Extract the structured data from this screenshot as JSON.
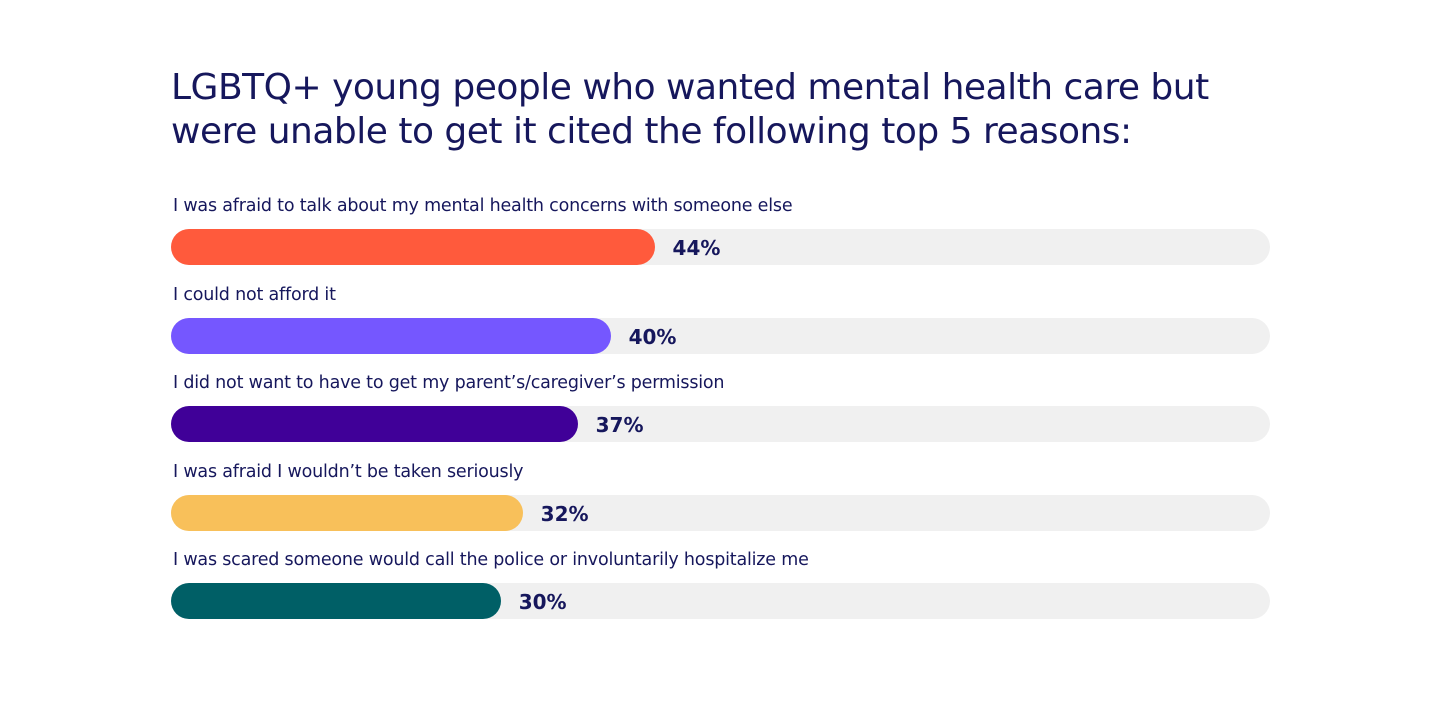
{
  "chart_data": {
    "type": "bar",
    "orientation": "horizontal",
    "title": "LGBTQ+ young people who wanted mental health care but were unable to get it cited the following top 5 reasons:",
    "xlabel": "",
    "ylabel": "",
    "xlim": [
      0,
      100
    ],
    "grid": false,
    "legend": "none",
    "categories": [
      "I was afraid to talk about my mental health concerns with someone else",
      "I could not afford it",
      "I did not want to have to get my parent’s/caregiver’s permission",
      "I was afraid I wouldn’t be taken seriously",
      "I was scared someone would call the police or involuntarily hospitalize me"
    ],
    "values": [
      44,
      40,
      37,
      32,
      30
    ],
    "value_labels": [
      "44%",
      "40%",
      "37%",
      "32%",
      "30%"
    ],
    "colors": [
      "#ff5a3c",
      "#7557ff",
      "#400098",
      "#f8c05a",
      "#005f66"
    ],
    "track_color": "#f0f0f0"
  }
}
